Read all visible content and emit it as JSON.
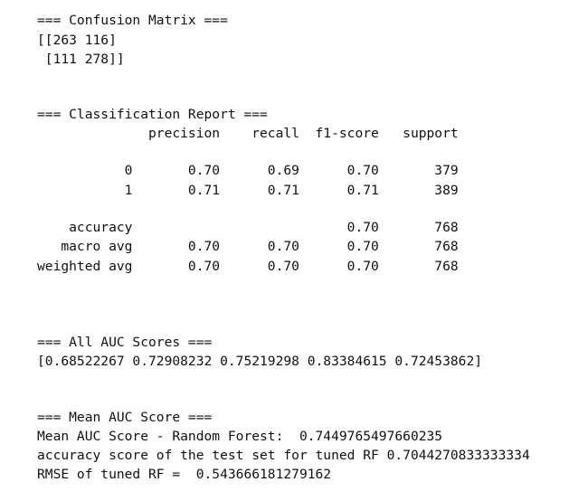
{
  "output": {
    "confusion_title": "=== Confusion Matrix ===",
    "confusion_row_1": "[[263 116]",
    "confusion_row_2": " [111 278]]",
    "report_title": "=== Classification Report ===",
    "report_header": "              precision    recall  f1-score   support",
    "report_class_0": "           0       0.70      0.69      0.70       379",
    "report_class_1": "           1       0.71      0.71      0.71       389",
    "report_accuracy": "    accuracy                           0.70       768",
    "report_macro_avg": "   macro avg       0.70      0.70      0.70       768",
    "report_weighted_avg": "weighted avg       0.70      0.70      0.70       768",
    "auc_title": "=== All AUC Scores ===",
    "auc_values": "[0.68522267 0.72908232 0.75219298 0.83384615 0.72453862]",
    "mean_auc_title": "=== Mean AUC Score ===",
    "mean_auc_line": "Mean AUC Score - Random Forest:  0.7449765497660235",
    "accuracy_line": "accuracy score of the test set for tuned RF 0.7044270833333334",
    "rmse_line": "RMSE of tuned RF =  0.543666181279162"
  }
}
